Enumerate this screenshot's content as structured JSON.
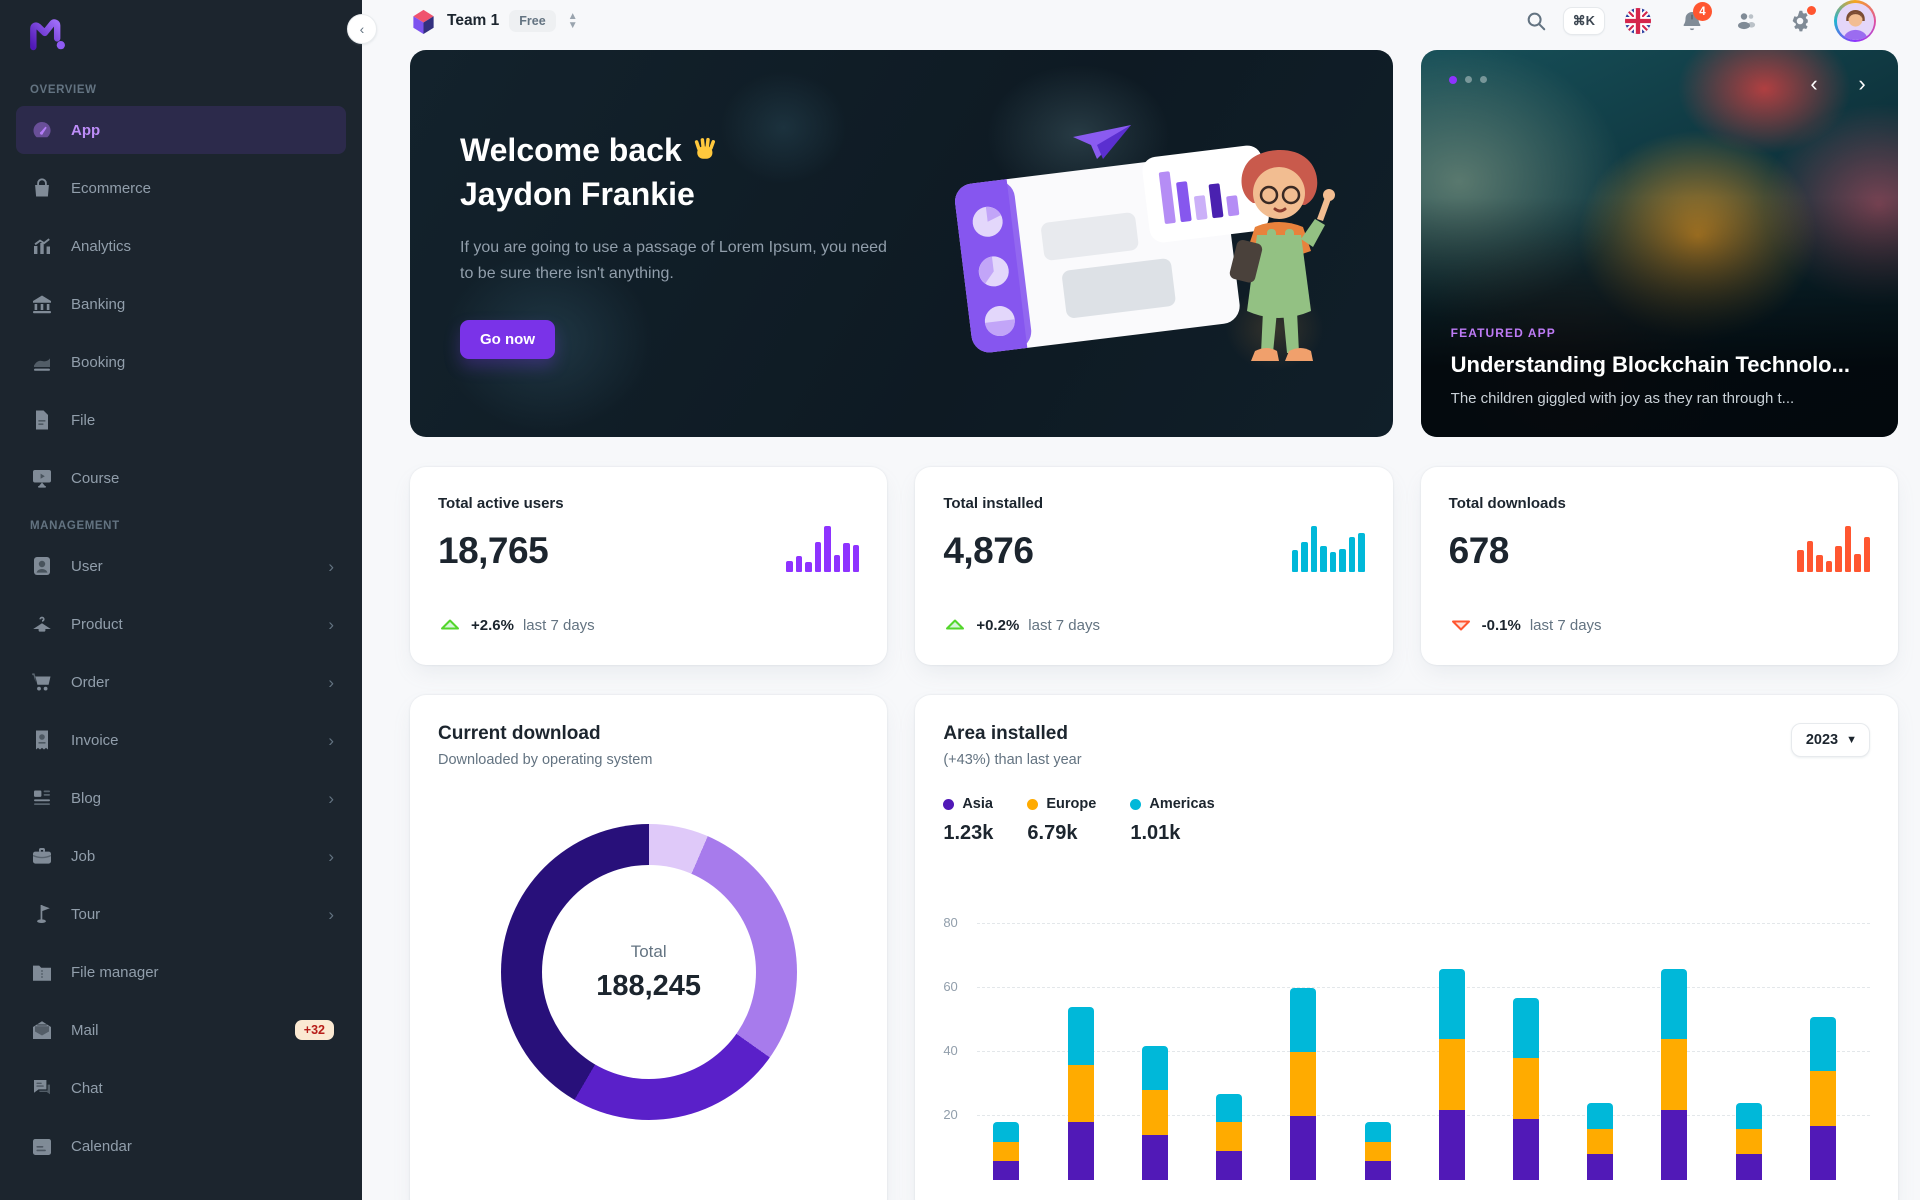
{
  "sidebar": {
    "sections": [
      {
        "label": "OVERVIEW",
        "items": [
          {
            "label": "App",
            "icon": "app-dashboard-icon",
            "active": true
          },
          {
            "label": "Ecommerce",
            "icon": "ecommerce-bag-icon"
          },
          {
            "label": "Analytics",
            "icon": "analytics-icon"
          },
          {
            "label": "Banking",
            "icon": "banking-icon"
          },
          {
            "label": "Booking",
            "icon": "booking-icon"
          },
          {
            "label": "File",
            "icon": "file-icon"
          },
          {
            "label": "Course",
            "icon": "course-icon"
          }
        ]
      },
      {
        "label": "MANAGEMENT",
        "items": [
          {
            "label": "User",
            "icon": "user-icon",
            "chevron": true
          },
          {
            "label": "Product",
            "icon": "product-hanger-icon",
            "chevron": true
          },
          {
            "label": "Order",
            "icon": "order-cart-icon",
            "chevron": true
          },
          {
            "label": "Invoice",
            "icon": "invoice-icon",
            "chevron": true
          },
          {
            "label": "Blog",
            "icon": "blog-icon",
            "chevron": true
          },
          {
            "label": "Job",
            "icon": "job-briefcase-icon",
            "chevron": true
          },
          {
            "label": "Tour",
            "icon": "tour-flag-icon",
            "chevron": true
          },
          {
            "label": "File manager",
            "icon": "folder-icon"
          },
          {
            "label": "Mail",
            "icon": "mail-icon",
            "badge": "+32"
          },
          {
            "label": "Chat",
            "icon": "chat-icon"
          },
          {
            "label": "Calendar",
            "icon": "calendar-icon"
          }
        ]
      }
    ]
  },
  "header": {
    "team_name": "Team 1",
    "plan_badge": "Free",
    "shortcut": "⌘K",
    "notification_count": "4"
  },
  "welcome": {
    "greeting": "Welcome back",
    "wave_emoji": "👋",
    "name": "Jaydon Frankie",
    "message": "If you are going to use a passage of Lorem Ipsum, you need to be sure there isn't anything.",
    "cta_label": "Go now"
  },
  "featured": {
    "eyebrow": "FEATURED APP",
    "title": "Understanding Blockchain Technolo...",
    "subtitle": "The children giggled with joy as they ran through t...",
    "dots": [
      "active",
      "inactive",
      "inactive"
    ]
  },
  "stats": [
    {
      "title": "Total active users",
      "value": "18,765",
      "trend": "up",
      "delta": "+2.6%",
      "period": "last 7 days"
    },
    {
      "title": "Total installed",
      "value": "4,876",
      "trend": "up",
      "delta": "+0.2%",
      "period": "last 7 days"
    },
    {
      "title": "Total downloads",
      "value": "678",
      "trend": "down",
      "delta": "-0.1%",
      "period": "last 7 days"
    }
  ],
  "downloads": {
    "title": "Current download",
    "subtitle": "Downloaded by operating system",
    "total_label": "Total",
    "total_value": "188,245"
  },
  "area": {
    "title": "Area installed",
    "subtitle": "(+43%) than last year",
    "year": "2023",
    "legend": [
      {
        "label": "Asia",
        "value": "1.23k",
        "color": "#5119B7"
      },
      {
        "label": "Europe",
        "value": "6.79k",
        "color": "#FFAB00"
      },
      {
        "label": "Americas",
        "value": "1.01k",
        "color": "#00B8D9"
      }
    ]
  },
  "chart_data": [
    {
      "id": "active-users-sparkline",
      "type": "bar",
      "color": "#8E33FF",
      "values": [
        23,
        35,
        21,
        65,
        100,
        38,
        63,
        58
      ]
    },
    {
      "id": "installed-sparkline",
      "type": "bar",
      "color": "#00B8D9",
      "values": [
        48,
        65,
        100,
        57,
        43,
        50,
        77,
        85
      ]
    },
    {
      "id": "downloads-sparkline",
      "type": "bar",
      "color": "#FF5630",
      "values": [
        48,
        68,
        36,
        24,
        56,
        100,
        40,
        76
      ]
    },
    {
      "id": "current-download-donut",
      "type": "pie",
      "title": "Current download",
      "total": 188245,
      "slices": [
        {
          "pct": 6.5,
          "color": "#DFC9F9"
        },
        {
          "pct": 28.3,
          "color": "#A77BEC"
        },
        {
          "pct": 23.6,
          "color": "#5A20C9"
        },
        {
          "pct": 41.6,
          "color": "#28107A"
        }
      ]
    },
    {
      "id": "area-installed-stacked-bar",
      "type": "bar",
      "stacked": true,
      "title": "Area installed",
      "x_labels_visible": false,
      "series": [
        {
          "name": "Asia",
          "color": "#5119B7",
          "values": [
            6,
            18,
            14,
            9,
            20,
            6,
            22,
            19,
            8,
            22,
            8,
            17
          ]
        },
        {
          "name": "Europe",
          "color": "#FFAB00",
          "values": [
            6,
            18,
            14,
            9,
            20,
            6,
            22,
            19,
            8,
            22,
            8,
            17
          ]
        },
        {
          "name": "Americas",
          "color": "#00B8D9",
          "values": [
            6,
            18,
            14,
            9,
            20,
            6,
            22,
            19,
            8,
            22,
            8,
            17
          ]
        }
      ],
      "yticks": [
        20,
        40,
        60,
        80
      ],
      "ylim": [
        0,
        80
      ],
      "grid": "dashed"
    }
  ]
}
